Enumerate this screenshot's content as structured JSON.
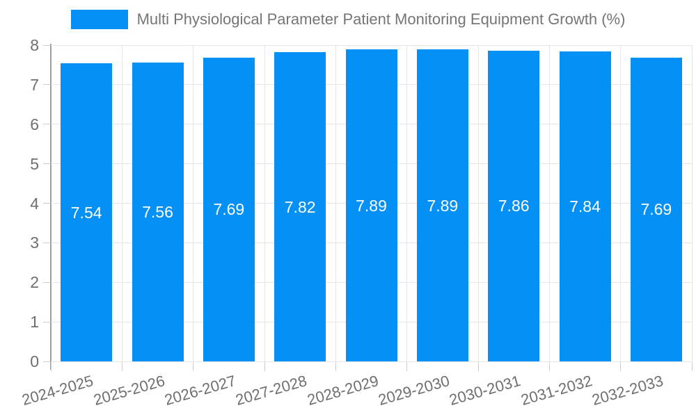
{
  "chart_data": {
    "type": "bar",
    "title": "Multi Physiological Parameter Patient Monitoring Equipment Growth (%)",
    "series": [
      {
        "name": "Multi Physiological Parameter Patient Monitoring Equipment Growth (%)",
        "values": [
          7.54,
          7.56,
          7.69,
          7.82,
          7.89,
          7.89,
          7.86,
          7.84,
          7.69
        ]
      }
    ],
    "categories": [
      "2024-2025",
      "2025-2026",
      "2026-2027",
      "2027-2028",
      "2028-2029",
      "2029-2030",
      "2030-2031",
      "2031-2032",
      "2032-2033"
    ],
    "value_labels": [
      "7.54",
      "7.56",
      "7.69",
      "7.82",
      "7.89",
      "7.89",
      "7.86",
      "7.84",
      "7.69"
    ],
    "xlabel": "",
    "ylabel": "",
    "ylim": [
      0,
      8
    ],
    "yticks": [
      "0",
      "1",
      "2",
      "3",
      "4",
      "5",
      "6",
      "7",
      "8"
    ],
    "grid": true,
    "legend_position": "top",
    "colors": {
      "bar": "#0590F5",
      "grid": "#e6e6e6",
      "axis_line": "#9e9e9e",
      "tick_mark": "#cccccc",
      "tick_label": "#6f6f6f",
      "legend_text": "#757575",
      "value_label": "#ffffff",
      "background": "#ffffff"
    }
  }
}
